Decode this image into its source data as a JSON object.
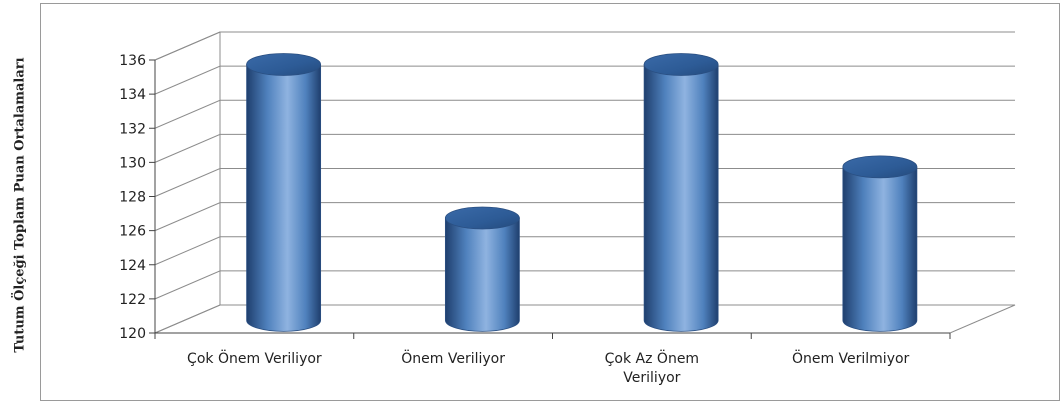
{
  "chart_data": {
    "type": "bar",
    "style": "3d-cylinder",
    "title": "",
    "xlabel": "",
    "ylabel": "Tutum Ölçeği Toplam Puan Ortalamaları",
    "categories": [
      [
        "Çok Önem Veriliyor"
      ],
      [
        "Önem Veriliyor"
      ],
      [
        "Çok Az Önem",
        "Veriliyor"
      ],
      [
        "Önem Verilmiyor"
      ]
    ],
    "values": [
      135,
      126,
      135,
      129
    ],
    "ylim": [
      120,
      136
    ],
    "yticks": [
      "120",
      "122",
      "124",
      "126",
      "128",
      "130",
      "132",
      "134",
      "136"
    ],
    "grid": true,
    "legend": "none",
    "colors": {
      "bar": "#4f81bd",
      "bar_dark": "#1f3f6e",
      "bar_light": "#8fb3e0",
      "grid": "#8c8c8c"
    }
  }
}
